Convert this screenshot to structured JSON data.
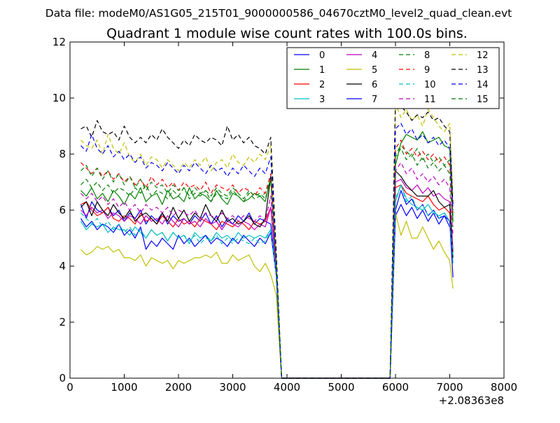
{
  "header": "Data file: modeM0/AS1G05_215T01_9000000586_04670cztM0_level2_quad_clean.evt",
  "chart_data": {
    "type": "line",
    "title": "Quadrant 1 module wise count rates with 100.0s bins.",
    "xlabel": "",
    "ylabel": "",
    "x_offset_label": "+2.08363e8",
    "xlim": [
      0,
      8000
    ],
    "ylim": [
      0,
      12
    ],
    "xticks": [
      0,
      1000,
      2000,
      3000,
      4000,
      5000,
      6000,
      7000,
      8000
    ],
    "yticks": [
      0,
      2,
      4,
      6,
      8,
      10,
      12
    ],
    "grid": false,
    "legend": {
      "placement": "top-right",
      "columns": 4
    },
    "x": [
      200,
      300,
      400,
      500,
      600,
      700,
      800,
      900,
      1000,
      1100,
      1200,
      1300,
      1400,
      1500,
      1600,
      1700,
      1800,
      1900,
      2000,
      2100,
      2200,
      2300,
      2400,
      2500,
      2600,
      2700,
      2800,
      2900,
      3000,
      3100,
      3200,
      3300,
      3400,
      3500,
      3600,
      3700,
      3800,
      3900,
      4000,
      4100,
      4200,
      4300,
      4400,
      4500,
      4600,
      4700,
      4800,
      4900,
      5000,
      5100,
      5200,
      5300,
      5400,
      5500,
      5600,
      5700,
      5800,
      5900,
      6000,
      6100,
      6200,
      6300,
      6400,
      6500,
      6600,
      6700,
      6800,
      6900,
      7000,
      7060
    ],
    "series": [
      {
        "name": "0",
        "color": "#0000ff",
        "dash": "solid",
        "values": [
          6.2,
          5.7,
          6.3,
          6.0,
          5.9,
          6.1,
          5.8,
          6.0,
          5.6,
          5.9,
          5.7,
          6.0,
          5.5,
          5.8,
          5.6,
          5.9,
          5.5,
          5.8,
          5.6,
          5.7,
          5.5,
          5.8,
          5.6,
          5.9,
          5.5,
          5.8,
          5.4,
          5.7,
          5.5,
          5.8,
          5.6,
          5.9,
          5.5,
          5.7,
          5.6,
          5.5,
          3.8,
          0,
          0,
          0,
          0,
          0,
          0,
          0,
          0,
          0,
          0,
          0,
          0,
          0,
          0,
          0,
          0,
          0,
          0,
          0,
          0,
          0,
          5.8,
          6.2,
          5.8,
          6.1,
          5.7,
          6.0,
          5.6,
          5.9,
          5.5,
          5.8,
          5.4,
          5.2
        ]
      },
      {
        "name": "1",
        "color": "#008000",
        "dash": "solid",
        "values": [
          6.7,
          6.5,
          6.8,
          6.4,
          6.6,
          6.3,
          6.7,
          6.5,
          6.2,
          6.6,
          6.4,
          6.8,
          6.3,
          6.5,
          6.6,
          6.2,
          6.7,
          6.4,
          6.5,
          6.3,
          6.8,
          6.4,
          6.6,
          6.5,
          6.3,
          6.7,
          6.4,
          6.2,
          6.6,
          6.5,
          6.3,
          6.4,
          6.6,
          6.5,
          6.3,
          7.2,
          4.0,
          0,
          0,
          0,
          0,
          0,
          0,
          0,
          0,
          0,
          0,
          0,
          0,
          0,
          0,
          0,
          0,
          0,
          0,
          0,
          0,
          0,
          7.6,
          8.4,
          8.7,
          8.6,
          8.5,
          8.8,
          8.4,
          8.5,
          8.6,
          8.3,
          8.2,
          5.6
        ]
      },
      {
        "name": "2",
        "color": "#ff0000",
        "dash": "solid",
        "values": [
          6.2,
          6.3,
          6.0,
          5.8,
          5.9,
          6.1,
          5.7,
          5.6,
          5.8,
          5.7,
          5.5,
          5.9,
          5.6,
          5.7,
          5.5,
          5.8,
          5.6,
          5.4,
          5.7,
          5.5,
          5.6,
          5.4,
          5.7,
          5.6,
          5.5,
          5.3,
          5.6,
          5.5,
          5.4,
          5.6,
          5.5,
          5.3,
          5.6,
          5.5,
          5.6,
          6.1,
          4.0,
          0,
          0,
          0,
          0,
          0,
          0,
          0,
          0,
          0,
          0,
          0,
          0,
          0,
          0,
          0,
          0,
          0,
          0,
          0,
          0,
          0,
          6.8,
          6.9,
          6.6,
          6.5,
          6.4,
          6.3,
          6.5,
          6.2,
          6.0,
          6.1,
          5.9,
          4.5
        ]
      },
      {
        "name": "3",
        "color": "#00bfbf",
        "dash": "solid",
        "values": [
          5.6,
          5.3,
          5.5,
          5.4,
          5.5,
          5.2,
          5.4,
          5.3,
          5.3,
          5.1,
          5.4,
          5.2,
          5.0,
          5.3,
          5.1,
          5.2,
          4.9,
          5.2,
          5.0,
          5.1,
          4.8,
          5.2,
          5.0,
          5.1,
          4.9,
          5.2,
          5.0,
          5.1,
          4.9,
          5.2,
          5.0,
          5.1,
          5.0,
          5.1,
          5.0,
          5.3,
          3.8,
          0,
          0,
          0,
          0,
          0,
          0,
          0,
          0,
          0,
          0,
          0,
          0,
          0,
          0,
          0,
          0,
          0,
          0,
          0,
          0,
          0,
          6.3,
          6.9,
          6.4,
          6.2,
          6.1,
          6.0,
          6.2,
          5.9,
          5.8,
          5.9,
          5.6,
          4.1
        ]
      },
      {
        "name": "4",
        "color": "#bf00bf",
        "dash": "solid",
        "values": [
          6.0,
          5.8,
          6.1,
          5.9,
          6.0,
          5.7,
          5.9,
          5.8,
          5.6,
          5.8,
          5.7,
          5.5,
          5.8,
          5.6,
          5.7,
          5.5,
          5.8,
          5.6,
          5.4,
          5.7,
          5.5,
          5.6,
          5.4,
          5.7,
          5.5,
          5.6,
          5.3,
          5.6,
          5.5,
          5.4,
          5.6,
          5.5,
          5.3,
          5.5,
          5.4,
          6.1,
          3.9,
          0,
          0,
          0,
          0,
          0,
          0,
          0,
          0,
          0,
          0,
          0,
          0,
          0,
          0,
          0,
          0,
          0,
          0,
          0,
          0,
          0,
          7.0,
          7.1,
          6.8,
          6.7,
          6.9,
          6.6,
          6.8,
          6.5,
          6.6,
          6.4,
          6.3,
          4.6
        ]
      },
      {
        "name": "5",
        "color": "#bfbf00",
        "dash": "solid",
        "values": [
          4.6,
          4.4,
          4.5,
          4.7,
          4.6,
          4.7,
          4.5,
          4.6,
          4.3,
          4.3,
          4.2,
          4.4,
          4.0,
          4.3,
          4.2,
          4.1,
          4.2,
          3.9,
          4.2,
          4.1,
          4.2,
          4.3,
          4.3,
          4.4,
          4.3,
          4.5,
          4.1,
          4.1,
          4.4,
          4.2,
          4.3,
          4.4,
          4.0,
          3.8,
          4.1,
          3.7,
          3.0,
          0,
          0,
          0,
          0,
          0,
          0,
          0,
          0,
          0,
          0,
          0,
          0,
          0,
          0,
          0,
          0,
          0,
          0,
          0,
          0,
          0,
          5.9,
          5.1,
          5.6,
          5.0,
          5.0,
          5.4,
          5.0,
          4.6,
          4.9,
          4.5,
          4.2,
          3.2
        ]
      },
      {
        "name": "6",
        "color": "#000000",
        "dash": "solid",
        "values": [
          6.1,
          6.3,
          5.8,
          6.3,
          6.0,
          5.8,
          6.2,
          5.9,
          5.7,
          6.0,
          5.6,
          5.8,
          5.9,
          5.7,
          5.5,
          5.9,
          5.6,
          6.1,
          5.7,
          6.0,
          5.6,
          5.9,
          5.7,
          6.2,
          5.8,
          5.6,
          6.0,
          5.6,
          5.7,
          5.5,
          5.6,
          5.8,
          5.5,
          5.4,
          5.7,
          7.2,
          4.0,
          0,
          0,
          0,
          0,
          0,
          0,
          0,
          0,
          0,
          0,
          0,
          0,
          0,
          0,
          0,
          0,
          0,
          0,
          0,
          0,
          0,
          7.4,
          7.2,
          6.9,
          6.7,
          6.5,
          6.5,
          6.5,
          6.7,
          6.3,
          6.1,
          6.2,
          4.3
        ]
      },
      {
        "name": "7",
        "color": "#0000ff",
        "dash": "solid",
        "values": [
          5.7,
          5.4,
          5.6,
          5.3,
          5.5,
          5.4,
          5.2,
          5.5,
          5.1,
          5.3,
          5.0,
          5.4,
          4.6,
          4.9,
          4.7,
          5.0,
          4.8,
          4.6,
          5.1,
          4.8,
          5.0,
          4.7,
          4.9,
          5.1,
          4.8,
          5.0,
          4.9,
          4.7,
          5.0,
          4.8,
          5.1,
          4.9,
          4.7,
          5.0,
          4.8,
          5.2,
          3.7,
          0,
          0,
          0,
          0,
          0,
          0,
          0,
          0,
          0,
          0,
          0,
          0,
          0,
          0,
          0,
          0,
          0,
          0,
          0,
          0,
          0,
          6.0,
          6.7,
          6.2,
          6.4,
          6.0,
          6.2,
          5.8,
          6.0,
          5.7,
          5.8,
          5.6,
          3.6
        ]
      },
      {
        "name": "8",
        "color": "#008000",
        "dash": "dashed",
        "values": [
          6.9,
          7.1,
          6.8,
          7.0,
          6.7,
          6.9,
          6.6,
          6.8,
          6.7,
          6.5,
          6.8,
          6.6,
          6.9,
          6.5,
          6.7,
          6.6,
          6.4,
          6.7,
          6.5,
          6.8,
          6.4,
          6.6,
          6.5,
          6.7,
          6.3,
          6.6,
          6.5,
          6.4,
          6.7,
          6.5,
          6.3,
          6.6,
          6.4,
          6.5,
          6.6,
          7.1,
          4.0,
          0,
          0,
          0,
          0,
          0,
          0,
          0,
          0,
          0,
          0,
          0,
          0,
          0,
          0,
          0,
          0,
          0,
          0,
          0,
          0,
          0,
          8.0,
          8.3,
          8.1,
          7.9,
          8.2,
          7.8,
          8.0,
          7.7,
          7.9,
          7.6,
          7.8,
          5.8
        ]
      },
      {
        "name": "9",
        "color": "#ff0000",
        "dash": "dashed",
        "values": [
          7.7,
          7.5,
          7.3,
          7.5,
          7.2,
          7.4,
          7.1,
          7.3,
          7.0,
          7.2,
          6.9,
          7.1,
          6.8,
          7.2,
          6.9,
          7.1,
          6.8,
          7.0,
          6.7,
          7.0,
          6.8,
          6.9,
          6.7,
          7.0,
          6.6,
          6.9,
          6.8,
          6.7,
          6.9,
          6.6,
          6.8,
          6.7,
          6.5,
          6.8,
          6.6,
          7.3,
          4.1,
          0,
          0,
          0,
          0,
          0,
          0,
          0,
          0,
          0,
          0,
          0,
          0,
          0,
          0,
          0,
          0,
          0,
          0,
          0,
          0,
          0,
          8.2,
          8.5,
          8.0,
          8.2,
          7.9,
          8.1,
          7.8,
          8.0,
          7.7,
          7.9,
          7.6,
          5.9
        ]
      },
      {
        "name": "10",
        "color": "#00bfbf",
        "dash": "dashed",
        "values": [
          5.9,
          5.7,
          5.5,
          5.7,
          5.4,
          5.6,
          5.3,
          5.5,
          5.2,
          5.4,
          5.1,
          5.3,
          5.0,
          5.3,
          5.1,
          5.2,
          4.9,
          5.2,
          5.0,
          5.1,
          4.9,
          5.1,
          4.8,
          5.0,
          4.9,
          5.1,
          4.8,
          5.0,
          4.8,
          5.0,
          4.9,
          4.8,
          5.0,
          4.8,
          4.9,
          5.3,
          3.7,
          0,
          0,
          0,
          0,
          0,
          0,
          0,
          0,
          0,
          0,
          0,
          0,
          0,
          0,
          0,
          0,
          0,
          0,
          0,
          0,
          0,
          6.4,
          6.9,
          6.3,
          6.5,
          6.0,
          6.2,
          5.8,
          6.0,
          5.7,
          5.9,
          5.6,
          4.4
        ]
      },
      {
        "name": "11",
        "color": "#bf00bf",
        "dash": "dashed",
        "values": [
          6.6,
          6.4,
          6.6,
          6.3,
          6.5,
          6.2,
          6.4,
          6.1,
          6.3,
          6.0,
          6.2,
          5.9,
          6.2,
          6.0,
          6.1,
          5.9,
          6.1,
          5.8,
          6.0,
          5.9,
          5.8,
          6.0,
          5.7,
          5.9,
          5.8,
          5.7,
          5.9,
          5.7,
          5.8,
          5.6,
          5.8,
          5.7,
          5.6,
          5.8,
          5.6,
          6.5,
          3.9,
          0,
          0,
          0,
          0,
          0,
          0,
          0,
          0,
          0,
          0,
          0,
          0,
          0,
          0,
          0,
          0,
          0,
          0,
          0,
          0,
          0,
          7.4,
          7.7,
          7.3,
          7.5,
          7.1,
          7.3,
          7.0,
          7.2,
          6.9,
          7.1,
          6.8,
          5.1
        ]
      },
      {
        "name": "12",
        "color": "#bfbf00",
        "dash": "dashed",
        "values": [
          8.5,
          8.3,
          8.2,
          8.5,
          8.0,
          8.7,
          8.2,
          8.0,
          8.4,
          7.9,
          7.7,
          8.0,
          7.6,
          7.9,
          7.8,
          7.5,
          7.8,
          7.6,
          7.4,
          7.7,
          7.5,
          7.8,
          7.6,
          7.9,
          7.4,
          7.7,
          7.8,
          7.5,
          8.0,
          7.7,
          7.6,
          7.9,
          7.7,
          8.0,
          7.8,
          8.3,
          4.5,
          0,
          0,
          0,
          0,
          0,
          0,
          0,
          0,
          0,
          0,
          0,
          0,
          0,
          0,
          0,
          0,
          0,
          0,
          0,
          0,
          0,
          9.8,
          9.3,
          9.6,
          9.2,
          9.4,
          9.0,
          9.6,
          9.3,
          9.0,
          8.8,
          9.1,
          6.5
        ]
      },
      {
        "name": "13",
        "color": "#000000",
        "dash": "dashed",
        "values": [
          8.9,
          9.0,
          8.6,
          9.2,
          8.8,
          8.7,
          8.8,
          8.5,
          9.0,
          8.6,
          8.4,
          8.6,
          8.4,
          8.7,
          8.5,
          8.9,
          8.6,
          8.4,
          8.2,
          8.5,
          8.3,
          8.7,
          8.5,
          8.4,
          8.6,
          8.5,
          8.3,
          9.0,
          8.5,
          8.7,
          8.4,
          8.6,
          8.3,
          8.2,
          8.0,
          8.6,
          4.6,
          0,
          0,
          0,
          0,
          0,
          0,
          0,
          0,
          0,
          0,
          0,
          0,
          0,
          0,
          0,
          0,
          0,
          0,
          0,
          0,
          0,
          10.0,
          9.7,
          9.5,
          9.2,
          9.4,
          9.3,
          9.5,
          9.2,
          9.3,
          9.0,
          8.8,
          6.2
        ]
      },
      {
        "name": "14",
        "color": "#0000ff",
        "dash": "dashed",
        "values": [
          8.3,
          8.1,
          8.7,
          8.2,
          8.0,
          8.3,
          7.9,
          8.1,
          7.8,
          8.0,
          7.7,
          7.9,
          7.5,
          7.7,
          7.6,
          7.4,
          7.7,
          7.5,
          7.3,
          7.6,
          7.4,
          7.7,
          7.5,
          7.3,
          7.6,
          7.4,
          7.5,
          7.2,
          7.5,
          7.3,
          7.6,
          7.4,
          7.2,
          7.5,
          7.3,
          7.9,
          4.3,
          0,
          0,
          0,
          0,
          0,
          0,
          0,
          0,
          0,
          0,
          0,
          0,
          0,
          0,
          0,
          0,
          0,
          0,
          0,
          0,
          0,
          8.9,
          9.1,
          8.7,
          8.9,
          8.5,
          8.7,
          8.4,
          8.6,
          8.3,
          8.5,
          8.2,
          6.0
        ]
      },
      {
        "name": "15",
        "color": "#008000",
        "dash": "dashed",
        "values": [
          7.4,
          7.6,
          7.2,
          7.5,
          7.1,
          7.4,
          7.0,
          7.3,
          6.9,
          7.2,
          6.8,
          7.1,
          6.7,
          7.0,
          6.8,
          6.9,
          6.6,
          6.9,
          6.7,
          6.8,
          6.5,
          6.8,
          6.6,
          6.7,
          6.5,
          6.8,
          6.6,
          6.5,
          6.8,
          6.6,
          6.4,
          6.7,
          6.5,
          6.6,
          6.4,
          7.1,
          4.1,
          0,
          0,
          0,
          0,
          0,
          0,
          0,
          0,
          0,
          0,
          0,
          0,
          0,
          0,
          0,
          0,
          0,
          0,
          0,
          0,
          0,
          7.9,
          8.2,
          7.8,
          8.0,
          7.6,
          7.9,
          7.5,
          7.7,
          7.4,
          7.6,
          7.3,
          5.4
        ]
      }
    ]
  }
}
